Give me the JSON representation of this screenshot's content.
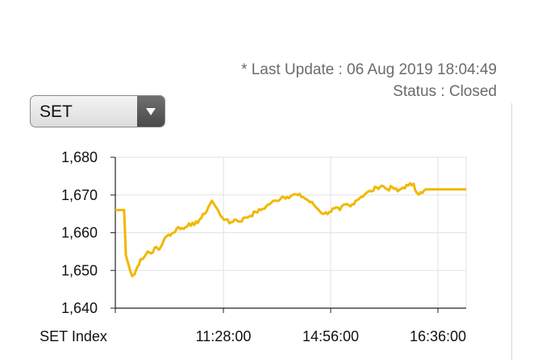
{
  "header": {
    "last_update": "* Last Update : 06 Aug 2019 18:04:49",
    "status": "Status : Closed"
  },
  "index_select": {
    "selected": "SET"
  },
  "colors": {
    "line": "#f0b800",
    "grid": "#e2e2e2",
    "axis": "#222222"
  },
  "chart_data": {
    "type": "line",
    "series_name": "SET Index",
    "x_tick_labels": [
      "SET Index",
      "11:28:00",
      "14:56:00",
      "16:36:00"
    ],
    "y_ticks": [
      1640,
      1650,
      1660,
      1670,
      1680
    ],
    "y_tick_labels": [
      "1,640",
      "1,650",
      "1,660",
      "1,670",
      "1,680"
    ],
    "ylim": [
      1640,
      1680
    ],
    "x_domain": [
      0,
      100
    ],
    "grid": true,
    "points": [
      [
        0,
        1666
      ],
      [
        2.5,
        1666
      ],
      [
        3.0,
        1654
      ],
      [
        3.6,
        1652
      ],
      [
        4.2,
        1650
      ],
      [
        4.8,
        1648.5
      ],
      [
        5.5,
        1649
      ],
      [
        6.3,
        1651
      ],
      [
        7.2,
        1653
      ],
      [
        8.2,
        1653.5
      ],
      [
        9.2,
        1655
      ],
      [
        10.2,
        1654.5
      ],
      [
        11.2,
        1656
      ],
      [
        12.5,
        1655.5
      ],
      [
        13.8,
        1658
      ],
      [
        15.2,
        1659.5
      ],
      [
        16.6,
        1660
      ],
      [
        18.0,
        1661.5
      ],
      [
        19.5,
        1661
      ],
      [
        21.0,
        1662.5
      ],
      [
        22.5,
        1662
      ],
      [
        24.0,
        1663.5
      ],
      [
        25.5,
        1665
      ],
      [
        26.6,
        1667
      ],
      [
        27.5,
        1668.5
      ],
      [
        28.5,
        1667
      ],
      [
        29.5,
        1665.5
      ],
      [
        30.5,
        1664
      ],
      [
        31.5,
        1663.5
      ],
      [
        32.5,
        1662.5
      ],
      [
        34.0,
        1663.5
      ],
      [
        35.5,
        1663
      ],
      [
        37.0,
        1664
      ],
      [
        38.5,
        1664.5
      ],
      [
        40.0,
        1665.5
      ],
      [
        41.5,
        1666
      ],
      [
        43.0,
        1667
      ],
      [
        44.5,
        1668
      ],
      [
        46.0,
        1668.5
      ],
      [
        47.5,
        1669.5
      ],
      [
        49.0,
        1669.5
      ],
      [
        50.5,
        1670
      ],
      [
        52.0,
        1670
      ],
      [
        53.5,
        1669.5
      ],
      [
        55.0,
        1668.5
      ],
      [
        56.5,
        1667.5
      ],
      [
        58.0,
        1666
      ],
      [
        59.5,
        1665
      ],
      [
        61.0,
        1665.5
      ],
      [
        62.5,
        1666.5
      ],
      [
        64.0,
        1666
      ],
      [
        65.5,
        1667.5
      ],
      [
        67.0,
        1667
      ],
      [
        68.5,
        1668.5
      ],
      [
        70.0,
        1669.5
      ],
      [
        71.5,
        1670.5
      ],
      [
        73.0,
        1671
      ],
      [
        74.5,
        1672
      ],
      [
        76.0,
        1672.5
      ],
      [
        77.5,
        1671.5
      ],
      [
        79.0,
        1672
      ],
      [
        80.5,
        1671
      ],
      [
        82.0,
        1672
      ],
      [
        83.5,
        1672.5
      ],
      [
        85.0,
        1673
      ],
      [
        86.0,
        1670.5
      ],
      [
        87.5,
        1670.5
      ],
      [
        88.5,
        1671.5
      ],
      [
        100,
        1671.5
      ]
    ]
  }
}
